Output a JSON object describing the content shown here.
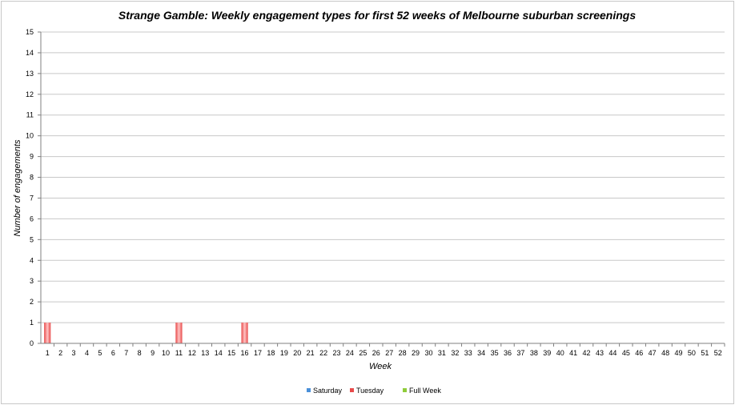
{
  "chart_data": {
    "type": "bar",
    "title": "Strange Gamble: Weekly engagement types for first 52 weeks of Melbourne suburban screenings",
    "xlabel": "Week",
    "ylabel": "Number of engagements",
    "ylim": [
      0,
      15
    ],
    "yticks": [
      "0",
      "1",
      "2",
      "3",
      "4",
      "5",
      "6",
      "7",
      "8",
      "9",
      "10",
      "11",
      "12",
      "13",
      "14",
      "15"
    ],
    "categories": [
      "1",
      "2",
      "3",
      "4",
      "5",
      "6",
      "7",
      "8",
      "9",
      "10",
      "11",
      "12",
      "13",
      "14",
      "15",
      "16",
      "17",
      "18",
      "19",
      "20",
      "21",
      "22",
      "23",
      "24",
      "25",
      "26",
      "27",
      "28",
      "29",
      "30",
      "31",
      "32",
      "33",
      "34",
      "35",
      "36",
      "37",
      "38",
      "39",
      "40",
      "41",
      "42",
      "43",
      "44",
      "45",
      "46",
      "47",
      "48",
      "49",
      "50",
      "51",
      "52"
    ],
    "stacked": true,
    "grid": true,
    "legend_position": "bottom",
    "series": [
      {
        "name": "Saturday",
        "color": "#4a90d9",
        "values": [
          0,
          0,
          0,
          0,
          0,
          0,
          0,
          0,
          0,
          0,
          0,
          0,
          0,
          0,
          0,
          0,
          0,
          0,
          0,
          0,
          0,
          0,
          0,
          0,
          0,
          0,
          0,
          0,
          0,
          0,
          0,
          0,
          0,
          0,
          0,
          0,
          0,
          0,
          0,
          0,
          0,
          0,
          0,
          0,
          0,
          0,
          0,
          0,
          0,
          0,
          0,
          0
        ]
      },
      {
        "name": "Tuesday",
        "color": "#e84a4a",
        "values": [
          1,
          0,
          0,
          0,
          0,
          0,
          0,
          0,
          0,
          0,
          1,
          0,
          0,
          0,
          0,
          1,
          0,
          0,
          0,
          0,
          0,
          0,
          0,
          0,
          0,
          0,
          0,
          0,
          0,
          0,
          0,
          0,
          0,
          0,
          0,
          0,
          0,
          0,
          0,
          0,
          0,
          0,
          0,
          0,
          0,
          0,
          0,
          0,
          0,
          0,
          0,
          0
        ]
      },
      {
        "name": "Full Week",
        "color": "#8fcc3a",
        "values": [
          0,
          0,
          0,
          0,
          0,
          0,
          0,
          0,
          0,
          0,
          0,
          0,
          0,
          0,
          0,
          0,
          0,
          0,
          0,
          0,
          0,
          0,
          0,
          0,
          0,
          0,
          0,
          0,
          0,
          0,
          0,
          0,
          0,
          0,
          0,
          0,
          0,
          0,
          0,
          0,
          0,
          0,
          0,
          0,
          0,
          0,
          0,
          0,
          0,
          0,
          0,
          0
        ]
      }
    ]
  }
}
